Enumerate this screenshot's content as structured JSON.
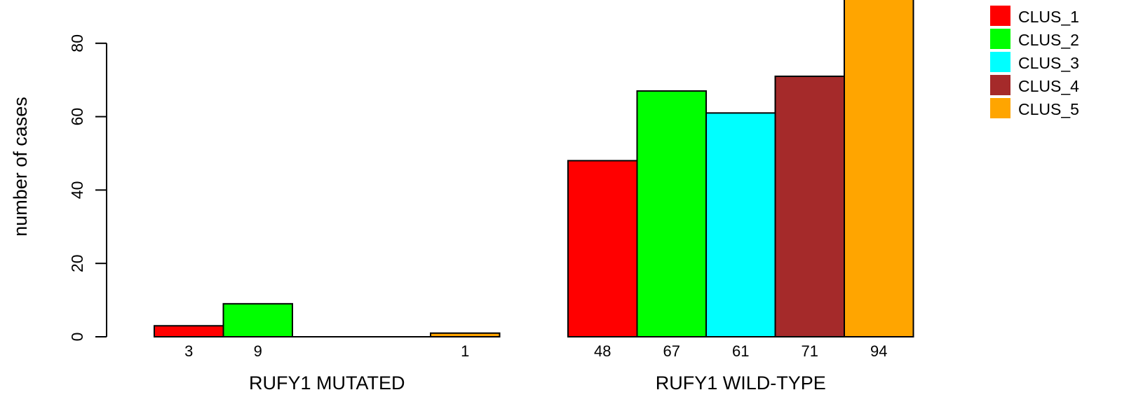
{
  "chart_data": {
    "type": "bar",
    "ylabel": "number of cases",
    "ylim": [
      0,
      94
    ],
    "yticks": [
      0,
      20,
      40,
      60,
      80
    ],
    "grid": false,
    "legend_position": "top-right",
    "groups": [
      {
        "label": "RUFY1 MUTATED",
        "values": [
          3,
          9,
          0,
          0,
          1
        ],
        "count_labels": [
          "3",
          "9",
          "",
          "",
          "1"
        ]
      },
      {
        "label": "RUFY1 WILD-TYPE",
        "values": [
          48,
          67,
          61,
          71,
          94
        ],
        "count_labels": [
          "48",
          "67",
          "61",
          "71",
          "94"
        ]
      }
    ],
    "series": [
      {
        "name": "CLUS_1",
        "color": "#ff0000"
      },
      {
        "name": "CLUS_2",
        "color": "#00ff00"
      },
      {
        "name": "CLUS_3",
        "color": "#00ffff"
      },
      {
        "name": "CLUS_4",
        "color": "#a52a2a"
      },
      {
        "name": "CLUS_5",
        "color": "#ffa500"
      }
    ]
  }
}
